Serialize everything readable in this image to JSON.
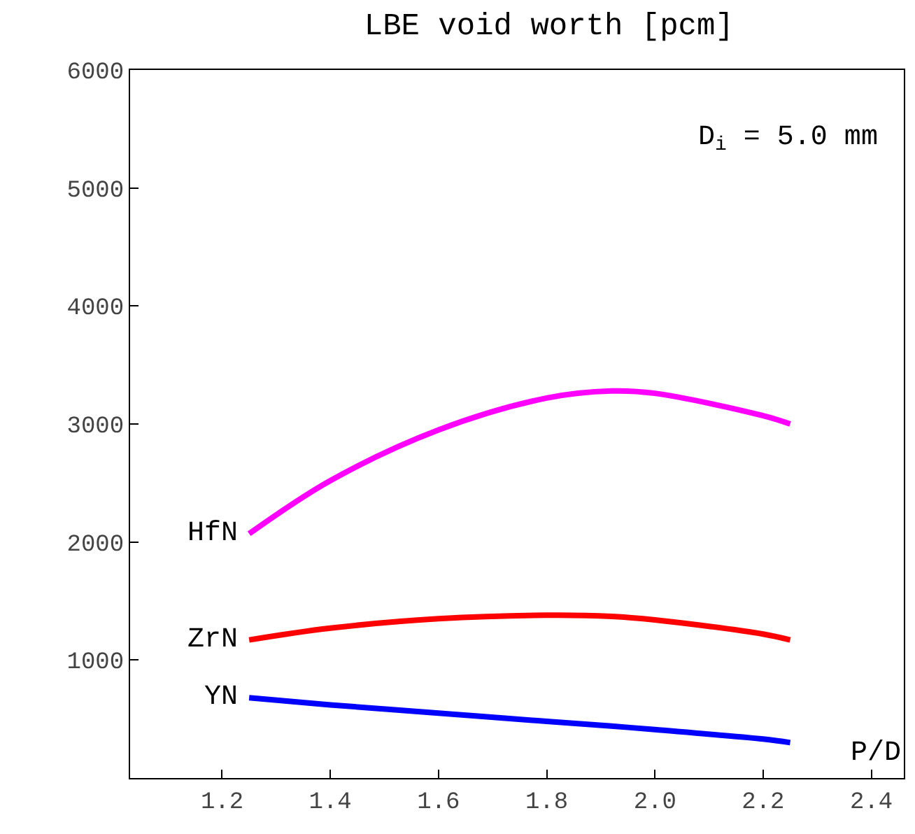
{
  "chart_data": {
    "type": "line",
    "title": "LBE void worth [pcm]",
    "xlabel": "P/D",
    "annotations": [
      "D$_{i}$ = 5.0 mm"
    ],
    "xlim": [
      1.03,
      2.46
    ],
    "ylim": [
      0,
      6000
    ],
    "xticks": [
      1.2,
      1.4,
      1.6,
      1.8,
      {
        "value": 2,
        "label": "2.0"
      },
      2.2,
      2.4
    ],
    "yticks": [
      1000,
      2000,
      3000,
      4000,
      5000,
      6000
    ],
    "grid": false,
    "legend": false,
    "marker": "none",
    "line_style": "solid",
    "x": [
      1.25,
      1.4,
      1.6,
      1.8,
      1.92,
      2.0,
      2.2,
      2.25
    ],
    "series": [
      {
        "name": "HfN",
        "color": "#ff00ff",
        "values": [
          2070,
          2520,
          2950,
          3220,
          3280,
          3260,
          3070,
          3000
        ]
      },
      {
        "name": "ZrN",
        "color": "#ff0000",
        "values": [
          1170,
          1270,
          1350,
          1380,
          1370,
          1340,
          1220,
          1170
        ]
      },
      {
        "name": "YN",
        "color": "#0000ff",
        "values": [
          680,
          620,
          550,
          480,
          440,
          410,
          330,
          300
        ]
      }
    ]
  }
}
